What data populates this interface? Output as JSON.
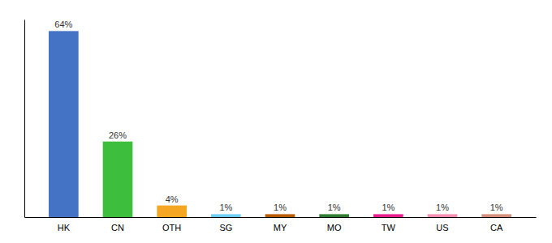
{
  "chart_data": {
    "type": "bar",
    "categories": [
      "HK",
      "CN",
      "OTH",
      "SG",
      "MY",
      "MO",
      "TW",
      "US",
      "CA"
    ],
    "values": [
      64,
      26,
      4,
      1,
      1,
      1,
      1,
      1,
      1
    ],
    "value_labels": [
      "64%",
      "26%",
      "4%",
      "1%",
      "1%",
      "1%",
      "1%",
      "1%",
      "1%"
    ],
    "colors": [
      "#4472c4",
      "#3dbf3d",
      "#f5a623",
      "#6ecff6",
      "#b85c00",
      "#2e7d32",
      "#e91e8c",
      "#f48fb1",
      "#d4907a"
    ],
    "ylim": [
      0,
      68
    ],
    "data_labels": true,
    "tick_labels": "x"
  }
}
